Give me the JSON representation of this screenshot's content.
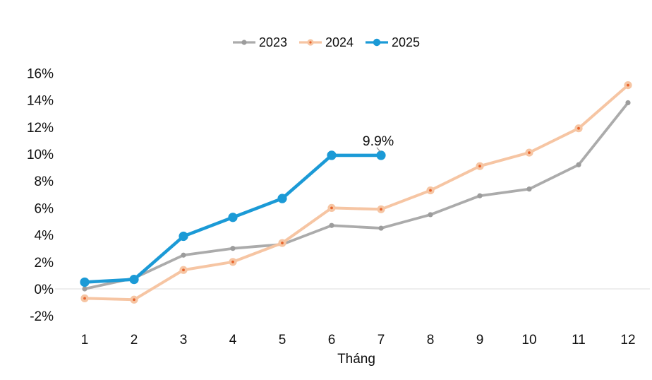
{
  "chart_data": {
    "type": "line",
    "title": "",
    "xlabel": "Tháng",
    "ylabel": "",
    "x": [
      1,
      2,
      3,
      4,
      5,
      6,
      7,
      8,
      9,
      10,
      11,
      12
    ],
    "x_tick_labels": [
      "1",
      "2",
      "3",
      "4",
      "5",
      "6",
      "7",
      "8",
      "9",
      "10",
      "11",
      "12"
    ],
    "y_ticks": [
      16,
      14,
      12,
      10,
      8,
      6,
      4,
      2,
      0,
      -2
    ],
    "y_tick_suffix": "%",
    "ylim": [
      -2,
      16
    ],
    "grid": "zero-line-only",
    "grid_color": "#E3E3E3",
    "background": "#FFFFFF",
    "text_color": "#0F0F0F",
    "legend_position": "top-center",
    "series": [
      {
        "name": "2023",
        "color": "#ABABAB",
        "marker_color": "#9C9C9C",
        "marker": "dot-small",
        "values": [
          0.0,
          0.8,
          2.5,
          3.0,
          3.3,
          4.7,
          4.5,
          5.5,
          6.9,
          7.4,
          9.2,
          13.8
        ]
      },
      {
        "name": "2024",
        "color": "#F6C5A3",
        "marker_color": "#E8642C",
        "marker": "circle-with-center-dot",
        "values": [
          -0.7,
          -0.8,
          1.4,
          2.0,
          3.4,
          6.0,
          5.9,
          7.3,
          9.1,
          10.1,
          11.9,
          15.1
        ]
      },
      {
        "name": "2025",
        "color": "#1B9AD6",
        "marker_color": "#1B9AD6",
        "marker": "dot-large",
        "values": [
          0.5,
          0.7,
          3.9,
          5.3,
          6.7,
          9.9,
          9.9
        ]
      }
    ],
    "annotation": {
      "text": "9.9%",
      "series": "2025",
      "month": 7,
      "value": 9.9
    }
  }
}
